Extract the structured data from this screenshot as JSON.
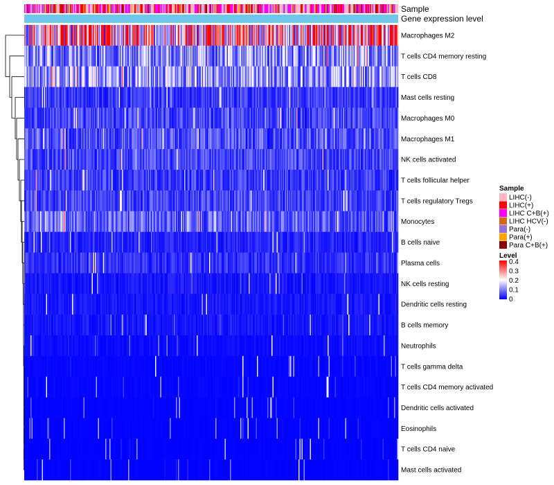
{
  "chart_data": {
    "type": "heatmap",
    "title": "",
    "annotation_rows": [
      "Sample",
      "Gene expression level"
    ],
    "rows": [
      "Macrophages M2",
      "T cells CD4 memory resting",
      "T cells CD8",
      "Mast cells resting",
      "Macrophages M0",
      "Macrophages M1",
      "NK cells activated",
      "T cells follicular helper",
      "T cells regulatory  Tregs",
      "Monocytes",
      "B cells naive",
      "Plasma cells",
      "NK cells resting",
      "Dendritic cells resting",
      "B cells memory",
      "Neutrophils",
      "T cells gamma delta",
      "T cells CD4 memory activated",
      "Dendritic cells activated",
      "Eosinophils",
      "T cells CD4 naive",
      "Mast cells activated"
    ],
    "approx_row_mean_level": [
      0.3,
      0.12,
      0.13,
      0.05,
      0.06,
      0.07,
      0.06,
      0.05,
      0.06,
      0.08,
      0.03,
      0.04,
      0.02,
      0.02,
      0.02,
      0.01,
      0.005,
      0.005,
      0.003,
      0.003,
      0.002,
      0.002
    ],
    "level_range": [
      0,
      0.4
    ],
    "legend_sample": {
      "title": "Sample",
      "items": [
        {
          "label": "LIHC(-)",
          "color": "#ffb6c1"
        },
        {
          "label": "LIHC(+)",
          "color": "#ff0000"
        },
        {
          "label": "LIHC C+B(+)",
          "color": "#ff00ff"
        },
        {
          "label": "LIHC HCV(-)",
          "color": "#d2691e"
        },
        {
          "label": "Para(-)",
          "color": "#9370db"
        },
        {
          "label": "Para(+)",
          "color": "#ffa500"
        },
        {
          "label": "Para C+B(+)",
          "color": "#8b0000"
        }
      ]
    },
    "legend_level": {
      "title": "Level",
      "ticks": [
        "0.4",
        "0.3",
        "0.2",
        "0.1",
        "0"
      ],
      "colors": [
        "#0000ff",
        "#ffffff",
        "#ff0000"
      ]
    },
    "gene_expression_color": "#6ec6ea"
  }
}
